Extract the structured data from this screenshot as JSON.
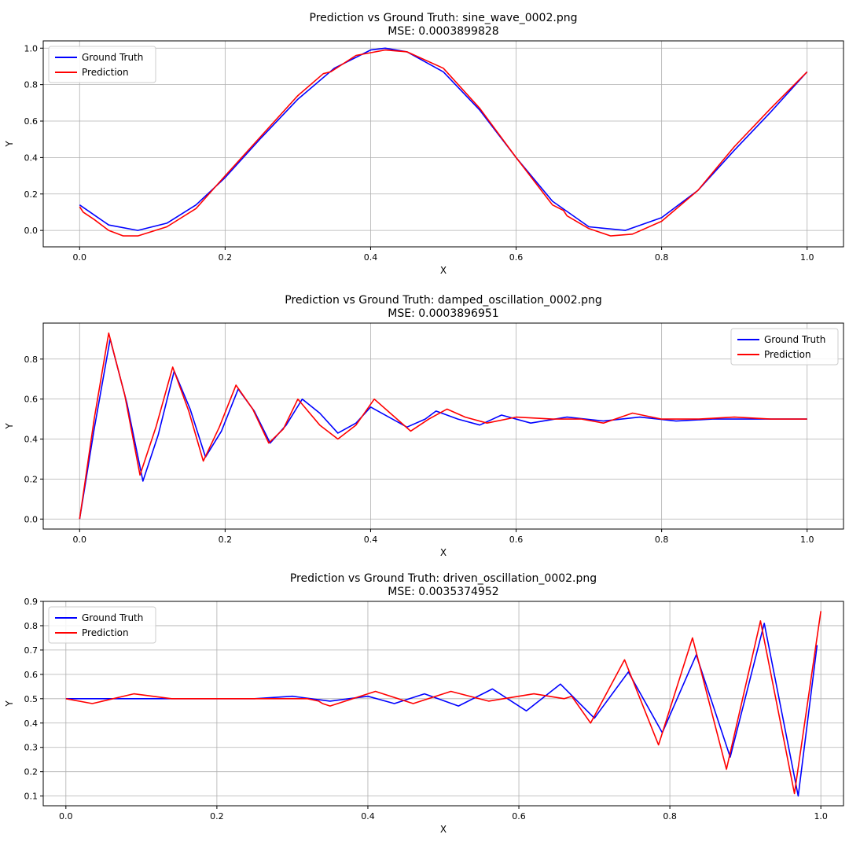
{
  "colors": {
    "ground_truth": "#0000ff",
    "prediction": "#ff0000",
    "grid": "#b0b0b0",
    "axes": "#000000"
  },
  "chart_data": [
    {
      "type": "line",
      "title": "Prediction vs Ground Truth: sine_wave_0002.png",
      "subtitle": "MSE: 0.0003899828",
      "xlabel": "X",
      "ylabel": "Y",
      "xlim": [
        -0.05,
        1.05
      ],
      "ylim": [
        -0.09,
        1.04
      ],
      "xticks": [
        0.0,
        0.2,
        0.4,
        0.6,
        0.8,
        1.0
      ],
      "xtick_labels": [
        "0.0",
        "0.2",
        "0.4",
        "0.6",
        "0.8",
        "1.0"
      ],
      "yticks": [
        0.0,
        0.2,
        0.4,
        0.6,
        0.8,
        1.0
      ],
      "ytick_labels": [
        "0.0",
        "0.2",
        "0.4",
        "0.6",
        "0.8",
        "1.0"
      ],
      "grid": true,
      "legend_position": "upper-left",
      "series": [
        {
          "name": "Ground Truth",
          "color": "#0000ff",
          "x": [
            0.0,
            0.04,
            0.08,
            0.12,
            0.16,
            0.2,
            0.25,
            0.3,
            0.35,
            0.4,
            0.42,
            0.45,
            0.5,
            0.55,
            0.6,
            0.65,
            0.7,
            0.75,
            0.8,
            0.85,
            0.9,
            0.95,
            1.0
          ],
          "y": [
            0.14,
            0.03,
            0.0,
            0.04,
            0.14,
            0.29,
            0.51,
            0.72,
            0.89,
            0.99,
            1.0,
            0.98,
            0.87,
            0.66,
            0.4,
            0.16,
            0.02,
            0.0,
            0.07,
            0.22,
            0.44,
            0.65,
            0.87
          ]
        },
        {
          "name": "Prediction",
          "color": "#ff0000",
          "x": [
            0.0,
            0.005,
            0.02,
            0.04,
            0.06,
            0.08,
            0.12,
            0.16,
            0.2,
            0.25,
            0.3,
            0.335,
            0.345,
            0.38,
            0.42,
            0.45,
            0.5,
            0.55,
            0.6,
            0.65,
            0.665,
            0.67,
            0.7,
            0.73,
            0.76,
            0.8,
            0.85,
            0.9,
            0.95,
            1.0
          ],
          "y": [
            0.13,
            0.1,
            0.06,
            0.0,
            -0.03,
            -0.03,
            0.02,
            0.12,
            0.3,
            0.52,
            0.74,
            0.86,
            0.87,
            0.96,
            0.99,
            0.98,
            0.89,
            0.67,
            0.4,
            0.14,
            0.11,
            0.08,
            0.01,
            -0.03,
            -0.02,
            0.05,
            0.22,
            0.46,
            0.67,
            0.87
          ]
        }
      ]
    },
    {
      "type": "line",
      "title": "Prediction vs Ground Truth: damped_oscillation_0002.png",
      "subtitle": "MSE: 0.0003896951",
      "xlabel": "X",
      "ylabel": "Y",
      "xlim": [
        -0.05,
        1.05
      ],
      "ylim": [
        -0.05,
        0.98
      ],
      "xticks": [
        0.0,
        0.2,
        0.4,
        0.6,
        0.8,
        1.0
      ],
      "xtick_labels": [
        "0.0",
        "0.2",
        "0.4",
        "0.6",
        "0.8",
        "1.0"
      ],
      "yticks": [
        0.0,
        0.2,
        0.4,
        0.6,
        0.8
      ],
      "ytick_labels": [
        "0.0",
        "0.2",
        "0.4",
        "0.6",
        "0.8"
      ],
      "grid": true,
      "legend_position": "upper-right",
      "series": [
        {
          "name": "Ground Truth",
          "color": "#0000ff",
          "x": [
            0.0,
            0.02,
            0.042,
            0.065,
            0.087,
            0.108,
            0.13,
            0.152,
            0.173,
            0.195,
            0.218,
            0.24,
            0.262,
            0.284,
            0.306,
            0.33,
            0.355,
            0.38,
            0.4,
            0.425,
            0.45,
            0.475,
            0.49,
            0.52,
            0.55,
            0.58,
            0.62,
            0.67,
            0.72,
            0.77,
            0.82,
            0.87,
            0.93,
            1.0
          ],
          "y": [
            0.0,
            0.45,
            0.9,
            0.58,
            0.19,
            0.42,
            0.74,
            0.55,
            0.31,
            0.44,
            0.65,
            0.54,
            0.38,
            0.47,
            0.6,
            0.53,
            0.43,
            0.48,
            0.56,
            0.51,
            0.46,
            0.5,
            0.54,
            0.5,
            0.47,
            0.52,
            0.48,
            0.51,
            0.49,
            0.51,
            0.49,
            0.5,
            0.5,
            0.5
          ]
        },
        {
          "name": "Prediction",
          "color": "#ff0000",
          "x": [
            0.0,
            0.02,
            0.04,
            0.062,
            0.083,
            0.105,
            0.128,
            0.15,
            0.17,
            0.192,
            0.215,
            0.238,
            0.26,
            0.28,
            0.3,
            0.33,
            0.355,
            0.38,
            0.405,
            0.43,
            0.455,
            0.48,
            0.505,
            0.53,
            0.56,
            0.6,
            0.65,
            0.69,
            0.72,
            0.76,
            0.8,
            0.85,
            0.9,
            0.95,
            1.0
          ],
          "y": [
            0.0,
            0.5,
            0.93,
            0.62,
            0.22,
            0.46,
            0.76,
            0.54,
            0.29,
            0.46,
            0.67,
            0.55,
            0.38,
            0.45,
            0.6,
            0.47,
            0.4,
            0.47,
            0.6,
            0.52,
            0.44,
            0.5,
            0.55,
            0.51,
            0.48,
            0.51,
            0.5,
            0.5,
            0.48,
            0.53,
            0.5,
            0.5,
            0.51,
            0.5,
            0.5
          ]
        }
      ]
    },
    {
      "type": "line",
      "title": "Prediction vs Ground Truth: driven_oscillation_0002.png",
      "subtitle": "MSE: 0.0035374952",
      "xlabel": "X",
      "ylabel": "Y",
      "xlim": [
        -0.03,
        1.03
      ],
      "ylim": [
        0.06,
        0.9
      ],
      "xticks": [
        0.0,
        0.2,
        0.4,
        0.6,
        0.8,
        1.0
      ],
      "xtick_labels": [
        "0.0",
        "0.2",
        "0.4",
        "0.6",
        "0.8",
        "1.0"
      ],
      "yticks": [
        0.1,
        0.2,
        0.3,
        0.4,
        0.5,
        0.6,
        0.7,
        0.8,
        0.9
      ],
      "ytick_labels": [
        "0.1",
        "0.2",
        "0.3",
        "0.4",
        "0.5",
        "0.6",
        "0.7",
        "0.8",
        "0.9"
      ],
      "grid": true,
      "legend_position": "upper-left",
      "series": [
        {
          "name": "Ground Truth",
          "color": "#0000ff",
          "x": [
            0.0,
            0.05,
            0.1,
            0.15,
            0.2,
            0.25,
            0.3,
            0.35,
            0.4,
            0.435,
            0.475,
            0.52,
            0.565,
            0.61,
            0.655,
            0.7,
            0.745,
            0.79,
            0.835,
            0.88,
            0.925,
            0.97,
            0.995
          ],
          "y": [
            0.5,
            0.5,
            0.5,
            0.5,
            0.5,
            0.5,
            0.51,
            0.49,
            0.51,
            0.48,
            0.52,
            0.47,
            0.54,
            0.45,
            0.56,
            0.42,
            0.61,
            0.36,
            0.68,
            0.26,
            0.81,
            0.1,
            0.72
          ]
        },
        {
          "name": "Prediction",
          "color": "#ff0000",
          "x": [
            0.0,
            0.035,
            0.09,
            0.14,
            0.2,
            0.26,
            0.32,
            0.335,
            0.34,
            0.35,
            0.41,
            0.46,
            0.51,
            0.56,
            0.62,
            0.66,
            0.67,
            0.695,
            0.74,
            0.785,
            0.83,
            0.875,
            0.92,
            0.965,
            1.0
          ],
          "y": [
            0.5,
            0.48,
            0.52,
            0.5,
            0.5,
            0.5,
            0.5,
            0.49,
            0.48,
            0.47,
            0.53,
            0.48,
            0.53,
            0.49,
            0.52,
            0.5,
            0.51,
            0.4,
            0.66,
            0.31,
            0.75,
            0.21,
            0.82,
            0.11,
            0.86
          ]
        }
      ]
    }
  ]
}
